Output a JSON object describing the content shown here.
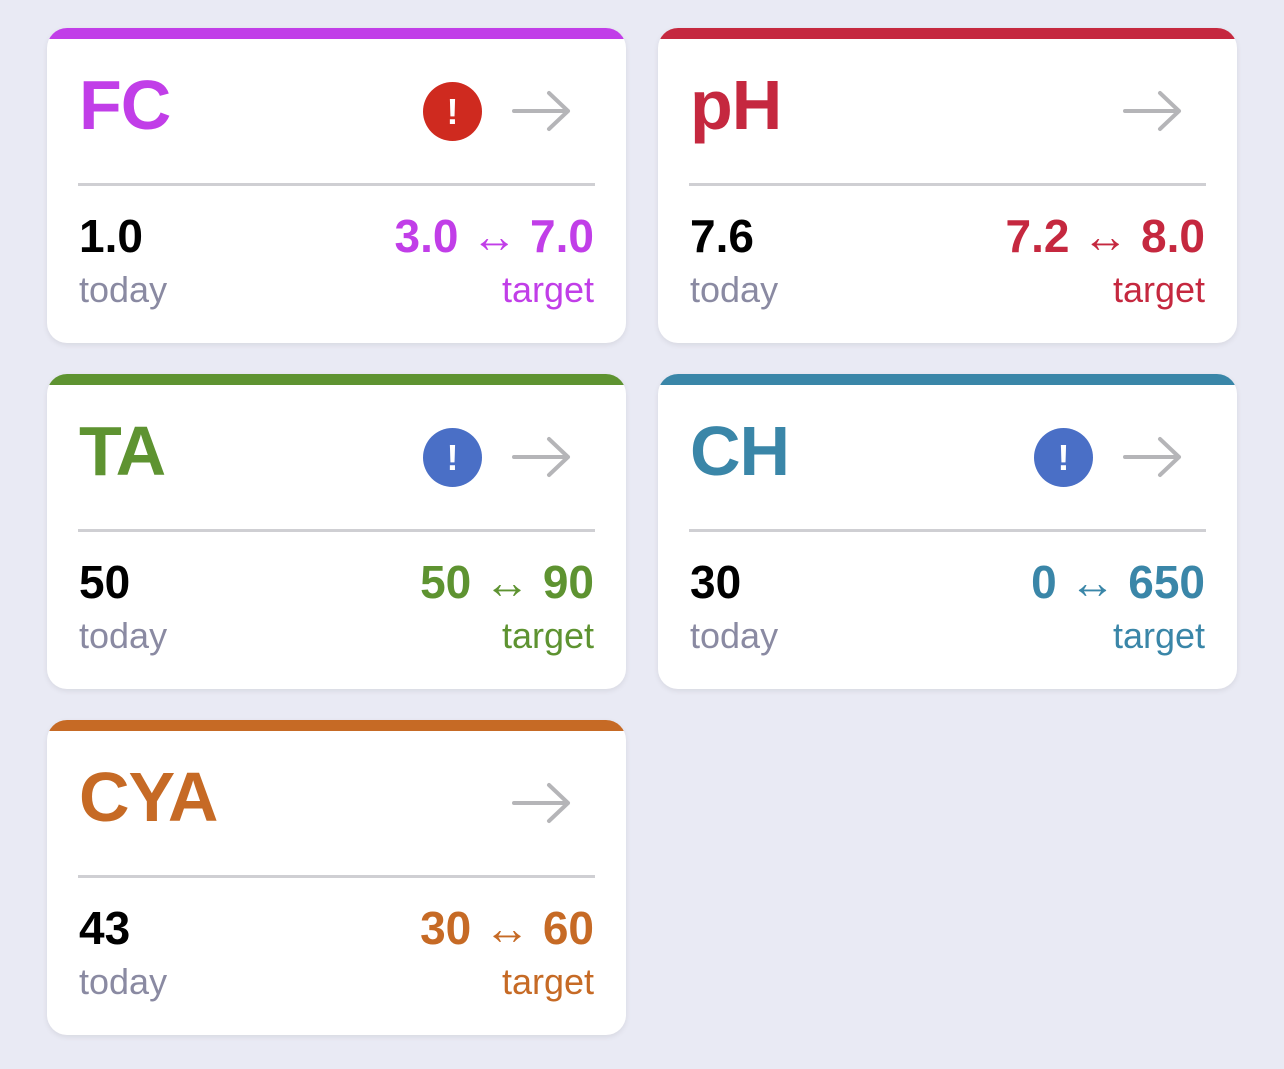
{
  "cards": [
    {
      "name": "FC",
      "color": "#c13ee8",
      "alert": true,
      "alert_color": "#cf2a1f",
      "alert_symbol": "!",
      "today_value": "1.0",
      "today_label": "today",
      "target_range": "3.0 ↔ 7.0",
      "target_label": "target"
    },
    {
      "name": "pH",
      "color": "#c5283f",
      "alert": false,
      "alert_color": "",
      "alert_symbol": "",
      "today_value": "7.6",
      "today_label": "today",
      "target_range": "7.2 ↔ 8.0",
      "target_label": "target"
    },
    {
      "name": "TA",
      "color": "#5e9331",
      "alert": true,
      "alert_color": "#4a6fc6",
      "alert_symbol": "!",
      "today_value": "50",
      "today_label": "today",
      "target_range": "50 ↔ 90",
      "target_label": "target"
    },
    {
      "name": "CH",
      "color": "#3a86a8",
      "alert": true,
      "alert_color": "#4a6fc6",
      "alert_symbol": "!",
      "today_value": "30",
      "today_label": "today",
      "target_range": "0 ↔ 650",
      "target_label": "target"
    },
    {
      "name": "CYA",
      "color": "#c66a25",
      "alert": false,
      "alert_color": "",
      "alert_symbol": "",
      "today_value": "43",
      "today_label": "today",
      "target_range": "30 ↔ 60",
      "target_label": "target"
    }
  ],
  "icons": {
    "arrow": "arrow-right-icon",
    "alert": "exclamation-icon"
  },
  "colors": {
    "background": "#e9eaf4",
    "card": "#ffffff",
    "arrow": "#b5b5b8",
    "muted_label": "#8a8aa2"
  }
}
